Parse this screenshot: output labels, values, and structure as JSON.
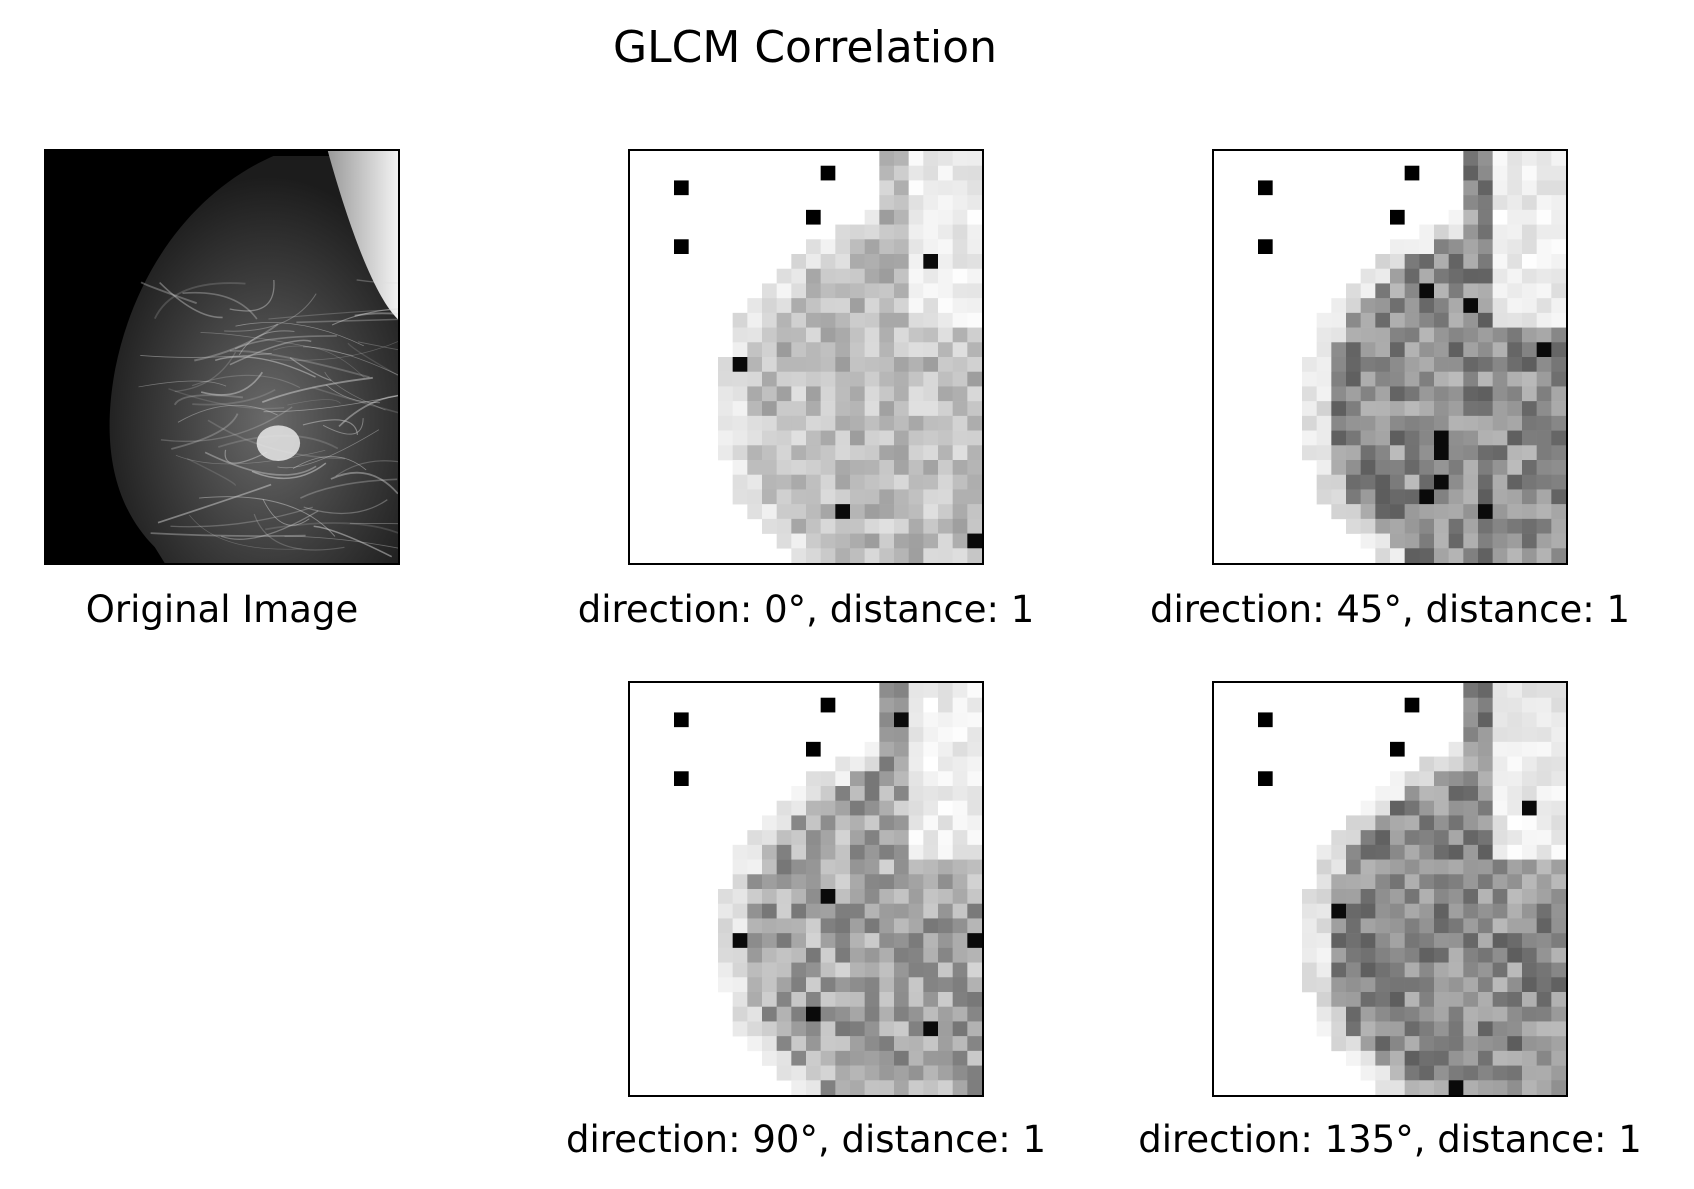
{
  "figure": {
    "title": "GLCM Correlation"
  },
  "panels": [
    {
      "caption": "Original Image"
    },
    {
      "caption": "direction: 0°, distance: 1"
    },
    {
      "caption": "direction: 45°, distance: 1"
    },
    {
      "caption": "direction: 90°, distance: 1"
    },
    {
      "caption": "direction: 135°, distance: 1"
    }
  ],
  "colors": {
    "background": "#ffffff",
    "frame": "#000000",
    "colormap": "grayscale"
  }
}
